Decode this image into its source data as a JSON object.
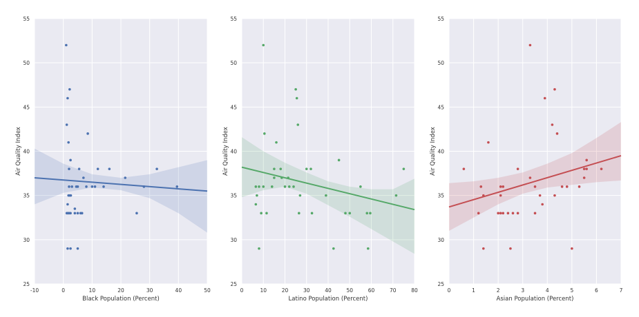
{
  "chart_data": [
    {
      "type": "scatter",
      "xlabel": "Black Population (Percent)",
      "ylabel": "Air Quality Index",
      "xlim": [
        -10,
        50
      ],
      "ylim": [
        25,
        55
      ],
      "xticks": [
        -10,
        0,
        10,
        20,
        30,
        40,
        50
      ],
      "yticks": [
        25,
        30,
        35,
        40,
        45,
        50,
        55
      ],
      "color": "#4c72b0",
      "grid": true,
      "regression": {
        "x": [
          -10,
          50
        ],
        "y": [
          37.0,
          35.5
        ]
      },
      "confidence_band": {
        "x": [
          -10,
          0,
          10,
          20,
          30,
          40,
          50
        ],
        "lower": [
          34.0,
          35.3,
          35.9,
          35.6,
          34.7,
          33.0,
          30.8
        ],
        "upper": [
          40.3,
          38.6,
          37.4,
          37.0,
          37.4,
          38.2,
          39.0
        ]
      },
      "points": [
        [
          1,
          52
        ],
        [
          1.2,
          43
        ],
        [
          1.5,
          46
        ],
        [
          1.8,
          41
        ],
        [
          2.2,
          47
        ],
        [
          2,
          38
        ],
        [
          2.5,
          39
        ],
        [
          2,
          36
        ],
        [
          1.5,
          34
        ],
        [
          1.2,
          33
        ],
        [
          1.6,
          33
        ],
        [
          1.8,
          35
        ],
        [
          2.2,
          35
        ],
        [
          2.6,
          35
        ],
        [
          2,
          33
        ],
        [
          2.5,
          33
        ],
        [
          1.5,
          29
        ],
        [
          2.5,
          29
        ],
        [
          3,
          36
        ],
        [
          4,
          33
        ],
        [
          4.5,
          36
        ],
        [
          5,
          36
        ],
        [
          5.5,
          38
        ],
        [
          5,
          33
        ],
        [
          6,
          33
        ],
        [
          6.5,
          33
        ],
        [
          7,
          37
        ],
        [
          8,
          36
        ],
        [
          8.5,
          42
        ],
        [
          10,
          36
        ],
        [
          11,
          36
        ],
        [
          12,
          38
        ],
        [
          14,
          36
        ],
        [
          16,
          38
        ],
        [
          21.5,
          37
        ],
        [
          25.5,
          33
        ],
        [
          28,
          36
        ],
        [
          32.5,
          38
        ],
        [
          39.5,
          36
        ],
        [
          5,
          29
        ],
        [
          4,
          33.5
        ]
      ]
    },
    {
      "type": "scatter",
      "xlabel": "Latino Population (Percent)",
      "ylabel": "Air Quality Index",
      "xlim": [
        0,
        80
      ],
      "ylim": [
        25,
        55
      ],
      "xticks": [
        0,
        10,
        20,
        30,
        40,
        50,
        60,
        70,
        80
      ],
      "yticks": [
        25,
        30,
        35,
        40,
        45,
        50,
        55
      ],
      "color": "#55a868",
      "grid": true,
      "regression": {
        "x": [
          0,
          80
        ],
        "y": [
          38.2,
          33.4
        ]
      },
      "confidence_band": {
        "x": [
          0,
          10,
          20,
          30,
          40,
          50,
          60,
          70,
          80
        ],
        "lower": [
          34.8,
          35.6,
          36.0,
          35.2,
          33.9,
          32.6,
          31.2,
          29.8,
          28.4
        ],
        "upper": [
          41.6,
          40.0,
          38.7,
          37.6,
          36.6,
          36.0,
          35.7,
          35.7,
          36.9
        ]
      },
      "points": [
        [
          10,
          52
        ],
        [
          25,
          47
        ],
        [
          25.5,
          46
        ],
        [
          26,
          43
        ],
        [
          10.5,
          42
        ],
        [
          16,
          41
        ],
        [
          6.5,
          36
        ],
        [
          8,
          36
        ],
        [
          10,
          36
        ],
        [
          14,
          36
        ],
        [
          15,
          38
        ],
        [
          15,
          37
        ],
        [
          18,
          38
        ],
        [
          18.5,
          37
        ],
        [
          20,
          36
        ],
        [
          21.5,
          37
        ],
        [
          22,
          36
        ],
        [
          24,
          36
        ],
        [
          7,
          35
        ],
        [
          6.5,
          34
        ],
        [
          9,
          33
        ],
        [
          11.5,
          33
        ],
        [
          8,
          29
        ],
        [
          26.5,
          33
        ],
        [
          27,
          35
        ],
        [
          30,
          38
        ],
        [
          32,
          38
        ],
        [
          32.5,
          33
        ],
        [
          39,
          35
        ],
        [
          42.5,
          29
        ],
        [
          45,
          39
        ],
        [
          48,
          33
        ],
        [
          50,
          33
        ],
        [
          55,
          36
        ],
        [
          58,
          33
        ],
        [
          59.5,
          33
        ],
        [
          58.5,
          29
        ],
        [
          71.5,
          35
        ],
        [
          75,
          38
        ]
      ]
    },
    {
      "type": "scatter",
      "xlabel": "Asian Population (Percent)",
      "ylabel": "Air Quality Index",
      "xlim": [
        0,
        7
      ],
      "ylim": [
        25,
        55
      ],
      "xticks": [
        0,
        1,
        2,
        3,
        4,
        5,
        6,
        7
      ],
      "yticks": [
        25,
        30,
        35,
        40,
        45,
        50,
        55
      ],
      "color": "#c44e52",
      "grid": true,
      "regression": {
        "x": [
          0,
          7
        ],
        "y": [
          33.7,
          39.5
        ]
      },
      "confidence_band": {
        "x": [
          0,
          1,
          2,
          3,
          4,
          5,
          6,
          7
        ],
        "lower": [
          31.0,
          32.5,
          34.0,
          35.2,
          35.9,
          36.2,
          36.5,
          36.7
        ],
        "upper": [
          36.4,
          36.6,
          37.0,
          37.6,
          38.6,
          39.8,
          41.5,
          43.3
        ]
      },
      "points": [
        [
          0.6,
          38
        ],
        [
          1.2,
          33
        ],
        [
          1.3,
          36
        ],
        [
          1.4,
          35
        ],
        [
          1.4,
          29
        ],
        [
          1.6,
          41
        ],
        [
          2,
          33
        ],
        [
          2.1,
          33
        ],
        [
          2.2,
          33
        ],
        [
          2.1,
          35
        ],
        [
          2.1,
          36
        ],
        [
          2.2,
          36
        ],
        [
          2.4,
          33
        ],
        [
          2.5,
          29
        ],
        [
          2.6,
          33
        ],
        [
          2.8,
          33
        ],
        [
          2.8,
          38
        ],
        [
          3.3,
          52
        ],
        [
          3.3,
          37
        ],
        [
          3.5,
          36
        ],
        [
          3.5,
          33
        ],
        [
          3.8,
          34
        ],
        [
          3.7,
          35
        ],
        [
          3.9,
          46
        ],
        [
          4.2,
          43
        ],
        [
          4.3,
          47
        ],
        [
          4.3,
          35
        ],
        [
          4.4,
          42
        ],
        [
          4.6,
          36
        ],
        [
          4.8,
          36
        ],
        [
          5,
          29
        ],
        [
          5.3,
          36
        ],
        [
          5.5,
          38
        ],
        [
          5.5,
          37
        ],
        [
          5.6,
          38
        ],
        [
          5.6,
          39
        ],
        [
          6.2,
          38
        ]
      ]
    }
  ]
}
